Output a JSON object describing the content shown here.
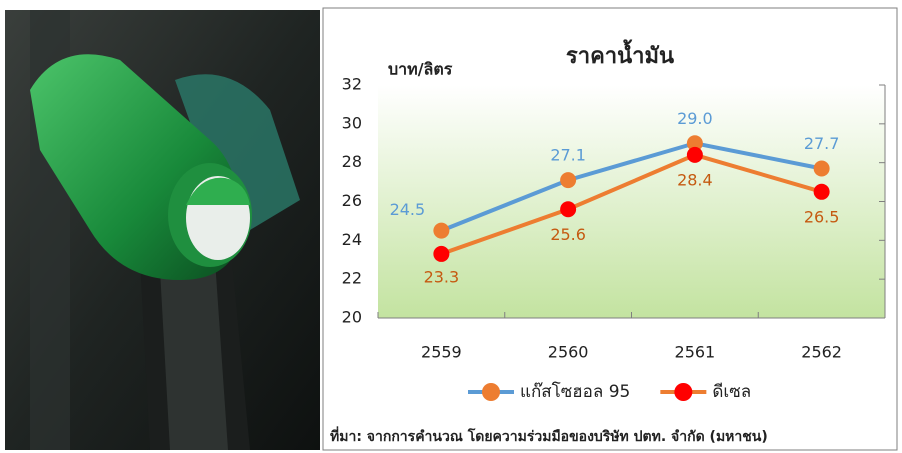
{
  "chart_data": {
    "type": "line",
    "title": "ราคาน้ำมัน",
    "y_label": "บาท/ลิตร",
    "categories": [
      "2559",
      "2560",
      "2561",
      "2562"
    ],
    "series": [
      {
        "name": "แก๊สโซฮอล 95",
        "color": "#5b9bd5",
        "marker_color": "#ed7d31",
        "label_color": "#5b9bd5",
        "values": [
          24.5,
          27.1,
          29.0,
          27.7
        ],
        "value_labels": [
          "24.5",
          "27.1",
          "29.0",
          "27.7"
        ]
      },
      {
        "name": "ดีเซล",
        "color": "#ed7d31",
        "marker_color": "#ff0000",
        "label_color": "#c55a11",
        "values": [
          23.3,
          25.6,
          28.4,
          26.5
        ],
        "value_labels": [
          "23.3",
          "25.6",
          "28.4",
          "26.5"
        ]
      }
    ],
    "ylim": [
      20,
      32
    ],
    "yticks": [
      20,
      22,
      24,
      26,
      28,
      30,
      32
    ],
    "grid": false,
    "source": "ที่มา: จากการคำนวณ โดยความร่วมมือของบริษัท ปตท. จำกัด (มหาชน)"
  }
}
